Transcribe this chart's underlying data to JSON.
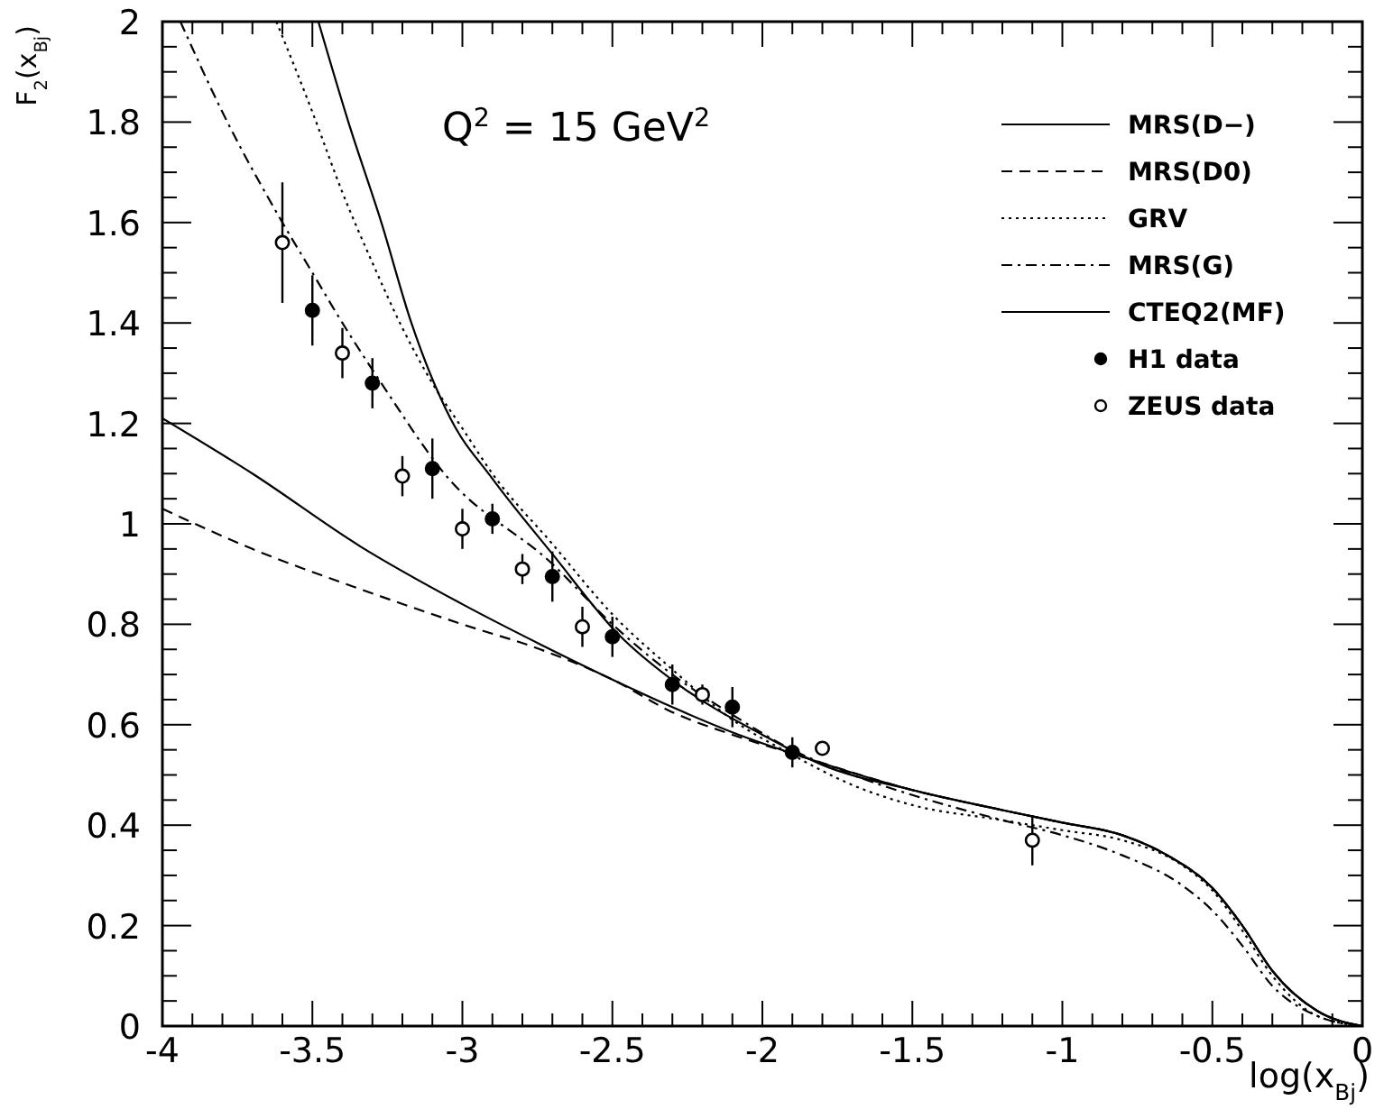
{
  "chart_data": {
    "type": "line",
    "title": "Q$^{2}$ = 15 GeV$^{2}$",
    "xlabel": "log(x$_{Bj}$)",
    "ylabel": "F$_{2}$(x$_{Bj}$)",
    "xlim": [
      -4,
      0
    ],
    "ylim": [
      0,
      2
    ],
    "xticks": [
      -4,
      {
        "value": -3.9,
        "label": null
      },
      {
        "value": -3.8,
        "label": null
      },
      {
        "value": -3.7,
        "label": null
      },
      {
        "value": -3.6,
        "label": null
      },
      -3.5,
      {
        "value": -3.4,
        "label": null
      },
      {
        "value": -3.3,
        "label": null
      },
      {
        "value": -3.2,
        "label": null
      },
      {
        "value": -3.1,
        "label": null
      },
      -3,
      {
        "value": -2.9,
        "label": null
      },
      {
        "value": -2.8,
        "label": null
      },
      {
        "value": -2.7,
        "label": null
      },
      {
        "value": -2.6,
        "label": null
      },
      -2.5,
      {
        "value": -2.4,
        "label": null
      },
      {
        "value": -2.3,
        "label": null
      },
      {
        "value": -2.2,
        "label": null
      },
      {
        "value": -2.1,
        "label": null
      },
      -2,
      {
        "value": -1.9,
        "label": null
      },
      {
        "value": -1.8,
        "label": null
      },
      {
        "value": -1.7,
        "label": null
      },
      {
        "value": -1.6,
        "label": null
      },
      -1.5,
      {
        "value": -1.4,
        "label": null
      },
      {
        "value": -1.3,
        "label": null
      },
      {
        "value": -1.2,
        "label": null
      },
      {
        "value": -1.1,
        "label": null
      },
      -1,
      {
        "value": -0.9,
        "label": null
      },
      {
        "value": -0.8,
        "label": null
      },
      {
        "value": -0.7,
        "label": null
      },
      {
        "value": -0.6,
        "label": null
      },
      -0.5,
      {
        "value": -0.4,
        "label": null
      },
      {
        "value": -0.3,
        "label": null
      },
      {
        "value": -0.2,
        "label": null
      },
      {
        "value": -0.1,
        "label": null
      },
      0
    ],
    "yticks": [
      0,
      {
        "value": 0.05,
        "label": null
      },
      {
        "value": 0.1,
        "label": null
      },
      {
        "value": 0.15,
        "label": null
      },
      0.2,
      {
        "value": 0.25,
        "label": null
      },
      {
        "value": 0.3,
        "label": null
      },
      {
        "value": 0.35,
        "label": null
      },
      0.4,
      {
        "value": 0.45,
        "label": null
      },
      {
        "value": 0.5,
        "label": null
      },
      {
        "value": 0.55,
        "label": null
      },
      0.6,
      {
        "value": 0.65,
        "label": null
      },
      {
        "value": 0.7,
        "label": null
      },
      {
        "value": 0.75,
        "label": null
      },
      0.8,
      {
        "value": 0.85,
        "label": null
      },
      {
        "value": 0.9,
        "label": null
      },
      {
        "value": 0.95,
        "label": null
      },
      1,
      {
        "value": 1.05,
        "label": null
      },
      {
        "value": 1.1,
        "label": null
      },
      {
        "value": 1.15,
        "label": null
      },
      1.2,
      {
        "value": 1.25,
        "label": null
      },
      {
        "value": 1.3,
        "label": null
      },
      {
        "value": 1.35,
        "label": null
      },
      1.4,
      {
        "value": 1.45,
        "label": null
      },
      {
        "value": 1.5,
        "label": null
      },
      {
        "value": 1.55,
        "label": null
      },
      1.6,
      {
        "value": 1.65,
        "label": null
      },
      {
        "value": 1.7,
        "label": null
      },
      {
        "value": 1.75,
        "label": null
      },
      1.8,
      {
        "value": 1.85,
        "label": null
      },
      {
        "value": 1.9,
        "label": null
      },
      {
        "value": 1.95,
        "label": null
      },
      2
    ],
    "grid": false,
    "legend": "top right",
    "series": [
      {
        "name": "MRS(D−)",
        "color": "#000000",
        "line_style": "solid",
        "x": [
          -3.48,
          -3.38,
          -3.27,
          -3.17,
          -3.04,
          -2.9,
          -2.7,
          -2.48,
          -2.28,
          -2.0,
          -1.8,
          -1.5,
          -1.2,
          -1.0,
          -0.8,
          -0.65,
          -0.5,
          -0.4,
          -0.3,
          -0.15,
          0
        ],
        "values": [
          2.0,
          1.8,
          1.6,
          1.4,
          1.21,
          1.09,
          0.94,
          0.78,
          0.68,
          0.58,
          0.52,
          0.47,
          0.43,
          0.405,
          0.38,
          0.34,
          0.275,
          0.2,
          0.11,
          0.03,
          0
        ]
      },
      {
        "name": "MRS(D0)",
        "color": "#000000",
        "line_style": "dashed",
        "x": [
          -4,
          -3.7,
          -3.34,
          -3.0,
          -2.74,
          -2.5,
          -2.3,
          -2.1,
          -1.86,
          -1.5,
          -1.2,
          -1.0,
          -0.8,
          -0.65,
          -0.5,
          -0.4,
          -0.3,
          -0.15,
          0
        ],
        "values": [
          1.03,
          0.95,
          0.87,
          0.8,
          0.75,
          0.69,
          0.625,
          0.58,
          0.535,
          0.47,
          0.43,
          0.405,
          0.38,
          0.34,
          0.275,
          0.2,
          0.11,
          0.03,
          0
        ]
      },
      {
        "name": "GRV",
        "color": "#000000",
        "line_style": "dotted",
        "x": [
          -3.62,
          -3.5,
          -3.4,
          -3.3,
          -3.2,
          -3.1,
          -3.0,
          -2.9,
          -2.7,
          -2.5,
          -2.3,
          -2.1,
          -1.9,
          -1.7,
          -1.5,
          -1.2,
          -1.0,
          -0.8,
          -0.6,
          -0.5,
          -0.4,
          -0.3,
          -0.15,
          0
        ],
        "values": [
          2.0,
          1.82,
          1.66,
          1.52,
          1.39,
          1.28,
          1.19,
          1.1,
          0.96,
          0.82,
          0.71,
          0.61,
          0.54,
          0.48,
          0.44,
          0.41,
          0.39,
          0.37,
          0.32,
          0.27,
          0.19,
          0.1,
          0.02,
          0
        ]
      },
      {
        "name": "MRS(G)",
        "color": "#000000",
        "line_style": "dashdot",
        "x": [
          -3.94,
          -3.8,
          -3.6,
          -3.5,
          -3.4,
          -3.27,
          -3.06,
          -2.7,
          -2.5,
          -2.3,
          -2.1,
          -1.9,
          -1.7,
          -1.5,
          -1.2,
          -1.0,
          -0.8,
          -0.6,
          -0.5,
          -0.4,
          -0.3,
          -0.15,
          0
        ],
        "values": [
          2.0,
          1.82,
          1.6,
          1.5,
          1.4,
          1.28,
          1.1,
          0.92,
          0.8,
          0.7,
          0.62,
          0.55,
          0.5,
          0.46,
          0.41,
          0.38,
          0.34,
          0.28,
          0.23,
          0.16,
          0.08,
          0.02,
          0
        ]
      },
      {
        "name": "CTEQ2(MF)",
        "color": "#000000",
        "line_style": "solid",
        "x": [
          -4,
          -3.7,
          -3.34,
          -3.0,
          -2.74,
          -2.5,
          -2.3,
          -2.1,
          -1.86,
          -1.5,
          -1.2,
          -1.0,
          -0.8,
          -0.65,
          -0.5,
          -0.4,
          -0.3,
          -0.15,
          0
        ],
        "values": [
          1.21,
          1.1,
          0.955,
          0.84,
          0.76,
          0.69,
          0.635,
          0.585,
          0.535,
          0.47,
          0.43,
          0.405,
          0.38,
          0.34,
          0.275,
          0.2,
          0.11,
          0.03,
          0
        ]
      },
      {
        "name": "H1 data",
        "type": "scatter",
        "color": "#000000",
        "marker": "circle",
        "x": [
          -3.5,
          -3.3,
          -3.1,
          -2.9,
          -2.7,
          -2.5,
          -2.3,
          -2.1,
          -1.9
        ],
        "values": [
          1.425,
          1.28,
          1.11,
          1.01,
          0.895,
          0.775,
          0.68,
          0.635,
          0.545
        ],
        "errors": [
          0.07,
          0.05,
          0.06,
          0.03,
          0.05,
          0.04,
          0.04,
          0.04,
          0.03
        ]
      },
      {
        "name": "ZEUS data",
        "type": "scatter",
        "color": "#ffffff",
        "marker": "circle",
        "x": [
          -3.6,
          -3.4,
          -3.2,
          -3.0,
          -2.8,
          -2.6,
          -2.2,
          -1.8,
          -1.1
        ],
        "values": [
          1.56,
          1.34,
          1.095,
          0.99,
          0.91,
          0.795,
          0.66,
          0.553,
          0.37
        ],
        "errors": [
          0.12,
          0.05,
          0.04,
          0.04,
          0.03,
          0.04,
          0.02,
          null,
          0.05
        ]
      }
    ]
  }
}
